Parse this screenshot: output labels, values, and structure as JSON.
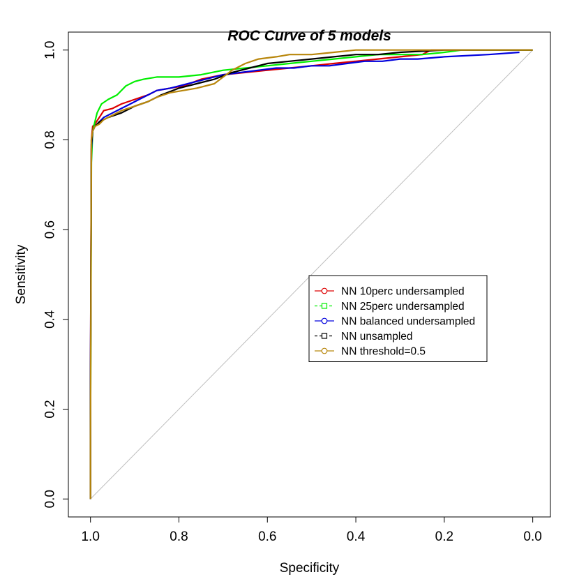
{
  "chart_data": {
    "type": "line",
    "title": "ROC Curve of 5 models",
    "xlabel": "Specificity",
    "ylabel": "Sensitivity",
    "xlim": [
      1.05,
      -0.04
    ],
    "ylim": [
      -0.04,
      1.04
    ],
    "x_ticks": [
      1.0,
      0.8,
      0.6,
      0.4,
      0.2,
      0.0
    ],
    "x_tick_labels": [
      "1.0",
      "0.8",
      "0.6",
      "0.4",
      "0.2",
      "0.0"
    ],
    "y_ticks": [
      0.0,
      0.2,
      0.4,
      0.6,
      0.8,
      1.0
    ],
    "y_tick_labels": [
      "0.0",
      "0.2",
      "0.4",
      "0.6",
      "0.8",
      "1.0"
    ],
    "grid": false,
    "legend_position": "center-right",
    "reference_line": {
      "from": [
        1.0,
        0.0
      ],
      "to": [
        0.0,
        1.0
      ],
      "color": "#bebebe"
    },
    "series": [
      {
        "name": "NN 10perc undersampled",
        "color": "#dd0000",
        "marker": "circle",
        "line_style": "solid",
        "x": [
          1.0,
          1.0,
          0.998,
          0.995,
          0.99,
          0.98,
          0.97,
          0.95,
          0.93,
          0.9,
          0.87,
          0.85,
          0.82,
          0.79,
          0.75,
          0.7,
          0.65,
          0.6,
          0.55,
          0.5,
          0.45,
          0.4,
          0.35,
          0.3,
          0.25,
          0.23,
          0.2,
          0.15,
          0.1,
          0.0
        ],
        "y": [
          0.0,
          0.25,
          0.8,
          0.83,
          0.835,
          0.85,
          0.865,
          0.87,
          0.88,
          0.89,
          0.9,
          0.91,
          0.915,
          0.92,
          0.935,
          0.945,
          0.95,
          0.955,
          0.96,
          0.965,
          0.97,
          0.975,
          0.98,
          0.985,
          0.99,
          1.0,
          1.0,
          1.0,
          1.0,
          1.0
        ]
      },
      {
        "name": "NN 25perc undersampled",
        "color": "#00ee00",
        "marker": "square",
        "line_style": "dashed",
        "x": [
          1.0,
          1.0,
          0.998,
          0.995,
          0.99,
          0.985,
          0.975,
          0.96,
          0.94,
          0.92,
          0.9,
          0.88,
          0.85,
          0.8,
          0.75,
          0.7,
          0.65,
          0.6,
          0.55,
          0.5,
          0.45,
          0.4,
          0.35,
          0.3,
          0.25,
          0.2,
          0.16,
          0.12,
          0.1,
          0.0
        ],
        "y": [
          0.0,
          0.13,
          0.75,
          0.82,
          0.84,
          0.86,
          0.88,
          0.89,
          0.9,
          0.92,
          0.93,
          0.935,
          0.94,
          0.94,
          0.945,
          0.955,
          0.96,
          0.965,
          0.97,
          0.975,
          0.98,
          0.985,
          0.99,
          0.99,
          0.99,
          0.995,
          1.0,
          1.0,
          1.0,
          1.0
        ]
      },
      {
        "name": "NN balanced undersampled",
        "color": "#0000dd",
        "marker": "circle",
        "line_style": "solid",
        "x": [
          1.0,
          1.0,
          0.998,
          0.995,
          0.99,
          0.98,
          0.97,
          0.95,
          0.93,
          0.91,
          0.89,
          0.87,
          0.85,
          0.82,
          0.78,
          0.74,
          0.7,
          0.66,
          0.62,
          0.58,
          0.54,
          0.5,
          0.46,
          0.42,
          0.38,
          0.34,
          0.3,
          0.26,
          0.2,
          0.1,
          0.03
        ],
        "y": [
          0.0,
          0.25,
          0.78,
          0.82,
          0.83,
          0.84,
          0.85,
          0.86,
          0.87,
          0.88,
          0.89,
          0.9,
          0.91,
          0.915,
          0.925,
          0.935,
          0.945,
          0.95,
          0.955,
          0.96,
          0.96,
          0.965,
          0.965,
          0.97,
          0.975,
          0.975,
          0.98,
          0.98,
          0.985,
          0.99,
          0.995
        ]
      },
      {
        "name": "NN unsampled",
        "color": "#000000",
        "marker": "square",
        "line_style": "dashed",
        "x": [
          1.0,
          1.0,
          0.998,
          0.995,
          0.99,
          0.98,
          0.96,
          0.93,
          0.9,
          0.87,
          0.84,
          0.8,
          0.76,
          0.72,
          0.68,
          0.64,
          0.6,
          0.55,
          0.5,
          0.45,
          0.4,
          0.35,
          0.3,
          0.2,
          0.1,
          0.0
        ],
        "y": [
          0.0,
          0.2,
          0.79,
          0.82,
          0.83,
          0.84,
          0.85,
          0.86,
          0.875,
          0.885,
          0.9,
          0.915,
          0.925,
          0.935,
          0.95,
          0.96,
          0.97,
          0.975,
          0.98,
          0.985,
          0.99,
          0.99,
          0.995,
          1.0,
          1.0,
          1.0
        ]
      },
      {
        "name": "NN threshold=0.5",
        "color": "#b8860b",
        "marker": "circle",
        "line_style": "solid",
        "x": [
          1.0,
          1.0,
          0.998,
          0.995,
          0.99,
          0.98,
          0.97,
          0.95,
          0.93,
          0.9,
          0.87,
          0.85,
          0.82,
          0.79,
          0.76,
          0.72,
          0.7,
          0.68,
          0.65,
          0.62,
          0.58,
          0.55,
          0.5,
          0.45,
          0.4,
          0.35,
          0.3,
          0.2,
          0.1,
          0.0
        ],
        "y": [
          0.0,
          0.13,
          0.8,
          0.82,
          0.83,
          0.835,
          0.845,
          0.855,
          0.865,
          0.875,
          0.885,
          0.895,
          0.905,
          0.91,
          0.915,
          0.925,
          0.94,
          0.955,
          0.97,
          0.98,
          0.985,
          0.99,
          0.99,
          0.995,
          1.0,
          1.0,
          1.0,
          1.0,
          1.0,
          1.0
        ]
      }
    ]
  }
}
